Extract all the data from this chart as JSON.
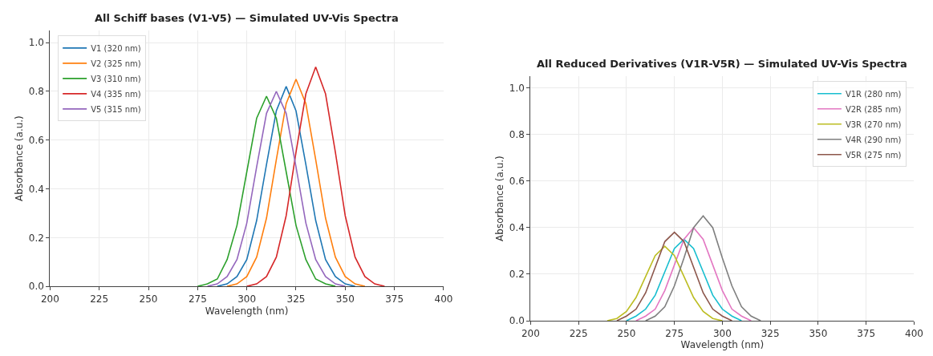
{
  "chart_data": [
    {
      "type": "line",
      "title": "All Schiff bases (V1-V5) — Simulated UV-Vis Spectra",
      "xlabel": "Wavelength (nm)",
      "ylabel": "Absorbance (a.u.)",
      "xlim": [
        200,
        400
      ],
      "xticks": [
        200,
        225,
        250,
        275,
        300,
        325,
        350,
        375,
        400
      ],
      "ylim": [
        0,
        1.05
      ],
      "yticks": [
        {
          "value": 0,
          "label": "0.0"
        },
        {
          "value": 0.2,
          "label": "0.2"
        },
        {
          "value": 0.4,
          "label": "0.4"
        },
        {
          "value": 0.6,
          "label": "0.6"
        },
        {
          "value": 0.8,
          "label": "0.8"
        },
        {
          "value": 1,
          "label": "1.0"
        }
      ],
      "grid": true,
      "legend": "top left",
      "marker": "none",
      "line_style": "solid",
      "series": [
        {
          "name": "V1 (320 nm)",
          "color": "#1f77b4",
          "x": [
            285,
            290,
            295,
            300,
            305,
            310,
            315,
            320,
            325,
            330,
            335,
            340,
            345,
            350,
            355
          ],
          "values": [
            0,
            0.01,
            0.04,
            0.11,
            0.27,
            0.5,
            0.72,
            0.82,
            0.72,
            0.5,
            0.27,
            0.11,
            0.04,
            0.01,
            0
          ]
        },
        {
          "name": "V2 (325 nm)",
          "color": "#ff7f0e",
          "x": [
            290,
            295,
            300,
            305,
            310,
            315,
            320,
            325,
            330,
            335,
            340,
            345,
            350,
            355,
            360
          ],
          "values": [
            0,
            0.01,
            0.04,
            0.12,
            0.28,
            0.52,
            0.75,
            0.85,
            0.75,
            0.52,
            0.28,
            0.12,
            0.04,
            0.01,
            0
          ]
        },
        {
          "name": "V3 (310 nm)",
          "color": "#2ca02c",
          "x": [
            275,
            280,
            285,
            290,
            295,
            300,
            305,
            310,
            315,
            320,
            325,
            330,
            335,
            340,
            345
          ],
          "values": [
            0,
            0.01,
            0.03,
            0.11,
            0.25,
            0.47,
            0.69,
            0.78,
            0.69,
            0.47,
            0.25,
            0.11,
            0.03,
            0.01,
            0
          ]
        },
        {
          "name": "V4 (335 nm)",
          "color": "#d62728",
          "x": [
            300,
            305,
            310,
            315,
            320,
            325,
            330,
            335,
            340,
            345,
            350,
            355,
            360,
            365,
            370
          ],
          "values": [
            0,
            0.01,
            0.04,
            0.12,
            0.29,
            0.55,
            0.79,
            0.9,
            0.79,
            0.55,
            0.29,
            0.12,
            0.04,
            0.01,
            0
          ]
        },
        {
          "name": "V5 (315 nm)",
          "color": "#9467bd",
          "x": [
            280,
            285,
            290,
            295,
            300,
            305,
            310,
            315,
            320,
            325,
            330,
            335,
            340,
            345,
            350
          ],
          "values": [
            0,
            0.01,
            0.04,
            0.11,
            0.26,
            0.49,
            0.71,
            0.8,
            0.71,
            0.49,
            0.26,
            0.11,
            0.04,
            0.01,
            0
          ]
        }
      ]
    },
    {
      "type": "line",
      "title": "All Reduced Derivatives (V1R-V5R) — Simulated UV-Vis Spectra",
      "xlabel": "Wavelength (nm)",
      "ylabel": "Absorbance (a.u.)",
      "xlim": [
        200,
        400
      ],
      "xticks": [
        200,
        225,
        250,
        275,
        300,
        325,
        350,
        375,
        400
      ],
      "ylim": [
        0,
        1.05
      ],
      "yticks": [
        {
          "value": 0,
          "label": "0.0"
        },
        {
          "value": 0.2,
          "label": "0.2"
        },
        {
          "value": 0.4,
          "label": "0.4"
        },
        {
          "value": 0.6,
          "label": "0.6"
        },
        {
          "value": 0.8,
          "label": "0.8"
        },
        {
          "value": 1,
          "label": "1.0"
        }
      ],
      "grid": true,
      "legend": "top right",
      "marker": "none",
      "line_style": "solid",
      "series": [
        {
          "name": "V1R (280 nm)",
          "color": "#17becf",
          "x": [
            250,
            255,
            260,
            265,
            270,
            275,
            280,
            285,
            290,
            295,
            300,
            305,
            310
          ],
          "values": [
            0,
            0.02,
            0.05,
            0.11,
            0.21,
            0.31,
            0.35,
            0.31,
            0.21,
            0.11,
            0.05,
            0.02,
            0
          ]
        },
        {
          "name": "V2R (285 nm)",
          "color": "#e377c2",
          "x": [
            255,
            260,
            265,
            270,
            275,
            280,
            285,
            290,
            295,
            300,
            305,
            310,
            315
          ],
          "values": [
            0,
            0.02,
            0.05,
            0.13,
            0.24,
            0.35,
            0.4,
            0.35,
            0.24,
            0.13,
            0.05,
            0.02,
            0
          ]
        },
        {
          "name": "V3R (270 nm)",
          "color": "#bcbd22",
          "x": [
            240,
            245,
            250,
            255,
            260,
            265,
            270,
            275,
            280,
            285,
            290,
            295,
            300
          ],
          "values": [
            0,
            0.01,
            0.04,
            0.1,
            0.19,
            0.28,
            0.32,
            0.28,
            0.19,
            0.1,
            0.04,
            0.01,
            0
          ]
        },
        {
          "name": "V4R (290 nm)",
          "color": "#7f7f7f",
          "x": [
            260,
            265,
            270,
            275,
            280,
            285,
            290,
            295,
            300,
            305,
            310,
            315,
            320
          ],
          "values": [
            0,
            0.02,
            0.06,
            0.15,
            0.27,
            0.4,
            0.45,
            0.4,
            0.27,
            0.15,
            0.06,
            0.02,
            0
          ]
        },
        {
          "name": "V5R (275 nm)",
          "color": "#8c564b",
          "x": [
            245,
            250,
            255,
            260,
            265,
            270,
            275,
            280,
            285,
            290,
            295,
            300,
            305
          ],
          "values": [
            0,
            0.02,
            0.05,
            0.12,
            0.23,
            0.34,
            0.38,
            0.34,
            0.23,
            0.12,
            0.05,
            0.02,
            0
          ]
        }
      ]
    }
  ]
}
